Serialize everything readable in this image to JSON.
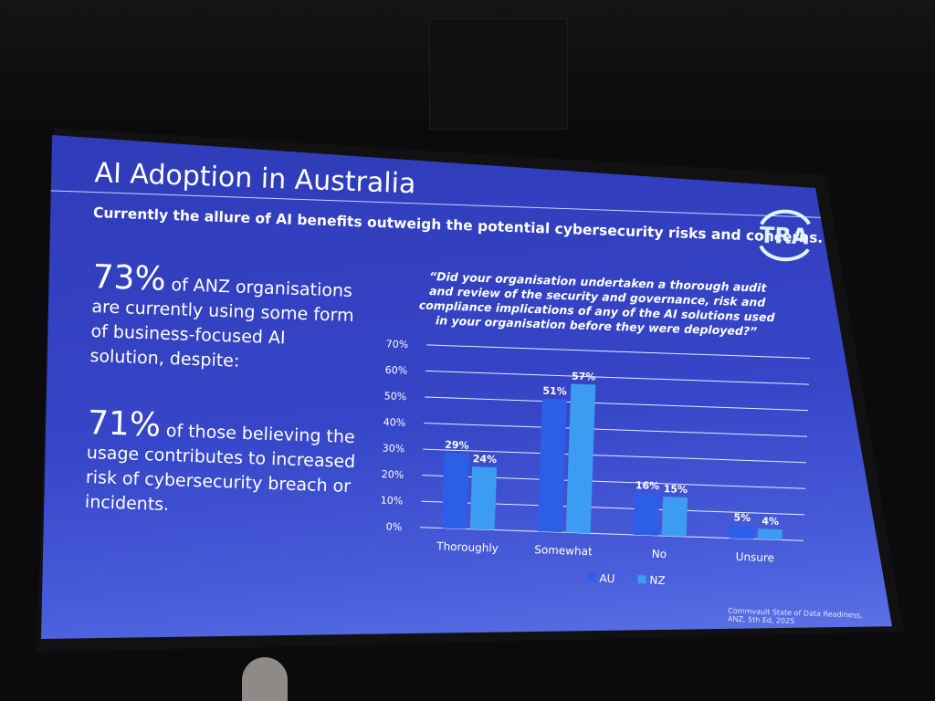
{
  "slide": {
    "title": "AI Adoption in Australia",
    "subtitle": "Currently the allure of AI benefits outweigh the potential cybersecurity risks and concerns.",
    "logo_text": "TRA",
    "stat1": {
      "value": "73%",
      "text": "of ANZ organisations are currently using some form of business-focused AI solution, despite:"
    },
    "stat2": {
      "value": "71%",
      "text": "of those believing the usage contributes to increased risk of cybersecurity breach or incidents."
    },
    "question": "“Did your organisation undertaken a thorough audit and review of the security and governance, risk and compliance implications of any of the AI solutions used in your organisation before they were deployed?”",
    "source": "Commvault State of Data Readiness, ANZ, 5th Ed, 2025"
  },
  "chart_data": {
    "type": "bar",
    "categories": [
      "Thoroughly",
      "Somewhat",
      "No",
      "Unsure"
    ],
    "series": [
      {
        "name": "AU",
        "values": [
          29,
          51,
          16,
          5
        ],
        "color": "#2d5ee8"
      },
      {
        "name": "NZ",
        "values": [
          24,
          57,
          15,
          4
        ],
        "color": "#3c9cf2"
      }
    ],
    "ylim": [
      0,
      70
    ],
    "yticks": [
      "0%",
      "10%",
      "20%",
      "30%",
      "40%",
      "50%",
      "60%",
      "70%"
    ],
    "grid": true,
    "legend": "bottom",
    "data_label_suffix": "%"
  }
}
